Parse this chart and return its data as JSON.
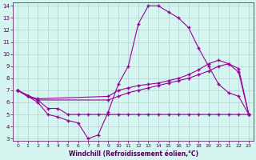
{
  "xlabel": "Windchill (Refroidissement éolien,°C)",
  "background_color": "#d4f5f0",
  "line_color": "#990099",
  "grid_color": "#b0c8c8",
  "xlim": [
    -0.5,
    23.5
  ],
  "ylim": [
    2.8,
    14.3
  ],
  "xticks": [
    0,
    1,
    2,
    3,
    4,
    5,
    6,
    7,
    8,
    9,
    10,
    11,
    12,
    13,
    14,
    15,
    16,
    17,
    18,
    19,
    20,
    21,
    22,
    23
  ],
  "yticks": [
    3,
    4,
    5,
    6,
    7,
    8,
    9,
    10,
    11,
    12,
    13,
    14
  ],
  "line1_x": [
    0,
    1,
    2,
    3,
    4,
    5,
    6,
    7,
    8,
    9,
    10,
    11,
    12,
    13,
    14,
    15,
    16,
    17,
    18,
    19,
    20,
    21,
    22,
    23
  ],
  "line1_y": [
    7.0,
    6.5,
    6.0,
    5.0,
    4.8,
    4.5,
    4.3,
    3.0,
    3.3,
    5.2,
    7.5,
    9.0,
    12.5,
    14.0,
    14.0,
    13.5,
    13.0,
    12.2,
    10.5,
    9.0,
    7.5,
    6.8,
    6.5,
    5.0
  ],
  "line2_x": [
    0,
    1,
    2,
    9,
    10,
    11,
    12,
    13,
    14,
    15,
    16,
    17,
    18,
    19,
    20,
    21,
    22,
    23
  ],
  "line2_y": [
    7.0,
    6.5,
    6.3,
    6.5,
    7.0,
    7.2,
    7.4,
    7.5,
    7.6,
    7.8,
    8.0,
    8.3,
    8.7,
    9.2,
    9.5,
    9.2,
    8.5,
    5.0
  ],
  "line3_x": [
    0,
    1,
    2,
    9,
    10,
    11,
    12,
    13,
    14,
    15,
    16,
    17,
    18,
    19,
    20,
    21,
    22,
    23
  ],
  "line3_y": [
    7.0,
    6.5,
    6.2,
    6.2,
    6.5,
    6.8,
    7.0,
    7.2,
    7.4,
    7.6,
    7.8,
    8.0,
    8.3,
    8.6,
    9.0,
    9.2,
    8.8,
    5.0
  ],
  "line4_x": [
    0,
    2,
    3,
    4,
    5,
    6,
    7,
    8,
    9,
    10,
    11,
    12,
    13,
    14,
    15,
    16,
    17,
    18,
    19,
    20,
    21,
    22,
    23
  ],
  "line4_y": [
    7.0,
    6.2,
    5.5,
    5.5,
    5.0,
    5.0,
    5.0,
    5.0,
    5.0,
    5.0,
    5.0,
    5.0,
    5.0,
    5.0,
    5.0,
    5.0,
    5.0,
    5.0,
    5.0,
    5.0,
    5.0,
    5.0,
    5.0
  ],
  "marker": "+",
  "markersize": 3,
  "linewidth": 0.8
}
